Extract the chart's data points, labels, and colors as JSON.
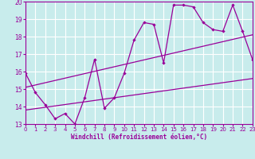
{
  "title": "",
  "xlabel": "Windchill (Refroidissement éolien,°C)",
  "ylabel": "",
  "bg_color": "#c8ecec",
  "line_color": "#990099",
  "grid_color": "#ffffff",
  "xmin": 0,
  "xmax": 23,
  "ymin": 13,
  "ymax": 20,
  "yticks": [
    13,
    14,
    15,
    16,
    17,
    18,
    19,
    20
  ],
  "xticks": [
    0,
    1,
    2,
    3,
    4,
    5,
    6,
    7,
    8,
    9,
    10,
    11,
    12,
    13,
    14,
    15,
    16,
    17,
    18,
    19,
    20,
    21,
    22,
    23
  ],
  "series1_x": [
    0,
    1,
    2,
    3,
    4,
    5,
    6,
    7,
    8,
    9,
    10,
    11,
    12,
    13,
    14,
    15,
    16,
    17,
    18,
    19,
    20,
    21,
    22,
    23
  ],
  "series1_y": [
    15.9,
    14.8,
    14.1,
    13.3,
    13.6,
    13.0,
    14.5,
    16.7,
    13.9,
    14.5,
    15.9,
    17.8,
    18.8,
    18.7,
    16.5,
    19.8,
    19.8,
    19.7,
    18.8,
    18.4,
    18.3,
    19.8,
    18.3,
    16.7
  ],
  "series2_x": [
    0,
    23
  ],
  "series2_y": [
    13.8,
    15.6
  ],
  "series3_x": [
    0,
    23
  ],
  "series3_y": [
    15.1,
    18.1
  ]
}
